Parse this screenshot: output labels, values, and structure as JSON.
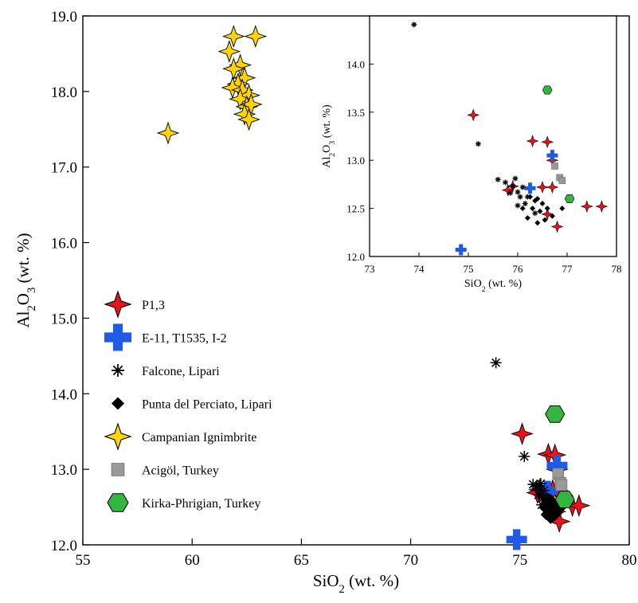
{
  "chart_data": [
    {
      "type": "scatter",
      "title": "",
      "xlabel": {
        "base": "SiO",
        "sub": "2",
        "unit": " (wt. %)"
      },
      "ylabel": {
        "pre": "Al",
        "sub1": "2",
        "mid": "O",
        "sub2": "3",
        "unit": " (wt. %)"
      },
      "xlim": [
        55,
        80
      ],
      "ylim": [
        12.0,
        19.0
      ],
      "xticks": [
        "55",
        "60",
        "65",
        "70",
        "75",
        "80"
      ],
      "yticks": [
        "12.0",
        "13.0",
        "14.0",
        "15.0",
        "16.0",
        "17.0",
        "18.0",
        "19.0"
      ],
      "grid": false,
      "legend_position": "bottom-left",
      "series": [
        {
          "name": "P1,3",
          "marker": "star4",
          "color": "#e8141b",
          "points": [
            [
              75.1,
              13.47
            ],
            [
              76.3,
              13.2
            ],
            [
              76.6,
              13.19
            ],
            [
              76.7,
              13.0
            ],
            [
              75.9,
              12.73
            ],
            [
              76.5,
              12.72
            ],
            [
              76.7,
              12.72
            ],
            [
              75.8,
              12.69
            ],
            [
              76.6,
              12.44
            ],
            [
              77.4,
              12.52
            ],
            [
              77.7,
              12.52
            ],
            [
              76.8,
              12.31
            ]
          ]
        },
        {
          "name": "E-11, T1535, I-2",
          "marker": "cross",
          "color": "#1f5be5",
          "points": [
            [
              76.7,
              13.05
            ],
            [
              76.25,
              12.71
            ],
            [
              74.85,
              12.07
            ]
          ]
        },
        {
          "name": "Falcone, Lipari",
          "marker": "asterisk",
          "color": "#000000",
          "points": [
            [
              73.9,
              14.41
            ],
            [
              75.2,
              13.17
            ],
            [
              75.6,
              12.8
            ],
            [
              75.75,
              12.77
            ],
            [
              75.9,
              12.73
            ],
            [
              75.95,
              12.81
            ],
            [
              76.0,
              12.67
            ],
            [
              75.85,
              12.66
            ],
            [
              76.05,
              12.62
            ],
            [
              76.1,
              12.72
            ],
            [
              76.2,
              12.62
            ],
            [
              76.15,
              12.55
            ],
            [
              76.35,
              12.45
            ],
            [
              76.0,
              12.53
            ]
          ]
        },
        {
          "name": "Punta del Perciato, Lipari",
          "marker": "diamond",
          "color": "#000000",
          "points": [
            [
              76.25,
              12.62
            ],
            [
              76.35,
              12.58
            ],
            [
              76.4,
              12.6
            ],
            [
              76.5,
              12.55
            ],
            [
              76.1,
              12.5
            ],
            [
              76.3,
              12.5
            ],
            [
              76.45,
              12.47
            ],
            [
              76.6,
              12.5
            ],
            [
              76.7,
              12.42
            ],
            [
              76.2,
              12.4
            ],
            [
              76.55,
              12.38
            ],
            [
              76.9,
              12.5
            ],
            [
              76.4,
              12.35
            ]
          ]
        },
        {
          "name": "Campanian Ignimbrite",
          "marker": "star4",
          "color": "#ffd400",
          "points": [
            [
              61.9,
              18.73
            ],
            [
              62.9,
              18.73
            ],
            [
              61.7,
              18.53
            ],
            [
              62.2,
              18.35
            ],
            [
              61.9,
              18.3
            ],
            [
              62.4,
              18.18
            ],
            [
              62.1,
              18.1
            ],
            [
              61.85,
              18.05
            ],
            [
              62.3,
              18.02
            ],
            [
              62.6,
              17.95
            ],
            [
              62.2,
              17.9
            ],
            [
              62.5,
              17.8
            ],
            [
              62.7,
              17.83
            ],
            [
              62.4,
              17.7
            ],
            [
              62.6,
              17.63
            ],
            [
              58.9,
              17.45
            ]
          ]
        },
        {
          "name": "Acigöl, Turkey",
          "marker": "square",
          "color": "#999999",
          "points": [
            [
              76.75,
              12.94
            ],
            [
              76.85,
              12.82
            ],
            [
              76.9,
              12.79
            ]
          ]
        },
        {
          "name": "Kirka-Phrigian, Turkey",
          "marker": "hexagon",
          "color": "#33b540",
          "points": [
            [
              76.6,
              13.73
            ],
            [
              77.05,
              12.6
            ]
          ]
        }
      ]
    },
    {
      "type": "scatter",
      "title": "",
      "xlabel": {
        "base": "SiO",
        "sub": "2",
        "unit": " (wt. %)"
      },
      "ylabel": {
        "pre": "Al",
        "sub1": "2",
        "mid": "O",
        "sub2": "3",
        "unit": " (wt. %)"
      },
      "xlim": [
        73,
        78
      ],
      "ylim": [
        12.0,
        14.5
      ],
      "xticks": [
        "73",
        "74",
        "75",
        "76",
        "77",
        "78"
      ],
      "yticks": [
        "12.0",
        "12.5",
        "13.0",
        "13.5",
        "14.0"
      ],
      "grid": false,
      "series_ref": "same-as-main"
    }
  ],
  "legend_items": [
    {
      "label": "P1,3",
      "marker": "star4",
      "color": "#e8141b"
    },
    {
      "label": "E-11, T1535, I-2",
      "marker": "cross",
      "color": "#1f5be5"
    },
    {
      "label": "Falcone, Lipari",
      "marker": "asterisk",
      "color": "#000000"
    },
    {
      "label": "Punta del Perciato, Lipari",
      "marker": "diamond",
      "color": "#000000"
    },
    {
      "label": "Campanian Ignimbrite",
      "marker": "star4",
      "color": "#ffd400"
    },
    {
      "label": "Acigöl, Turkey",
      "marker": "square",
      "color": "#999999"
    },
    {
      "label": "Kirka-Phrigian, Turkey",
      "marker": "hexagon",
      "color": "#33b540"
    }
  ]
}
